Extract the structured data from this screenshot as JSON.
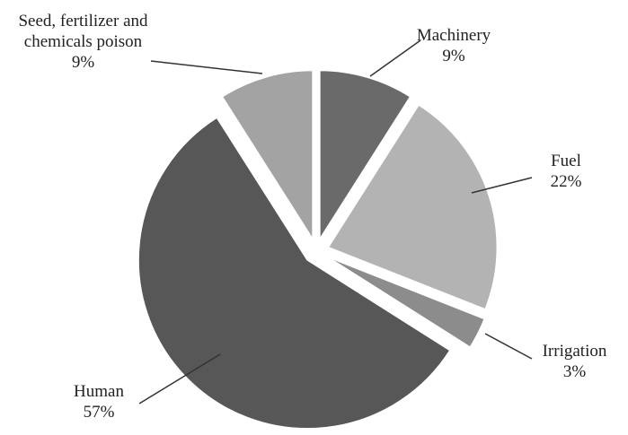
{
  "chart_data": {
    "type": "pie",
    "categories": [
      "Machinery",
      "Fuel",
      "Irrigation",
      "Human",
      "Seed, fertilizer and chemicals poison"
    ],
    "values": [
      9,
      22,
      3,
      57,
      9
    ],
    "value_labels": [
      "9%",
      "22%",
      "3%",
      "57%",
      "9%"
    ],
    "colors": [
      "#6a6a6a",
      "#b3b3b3",
      "#8c8c8c",
      "#575757",
      "#a3a3a3"
    ]
  }
}
